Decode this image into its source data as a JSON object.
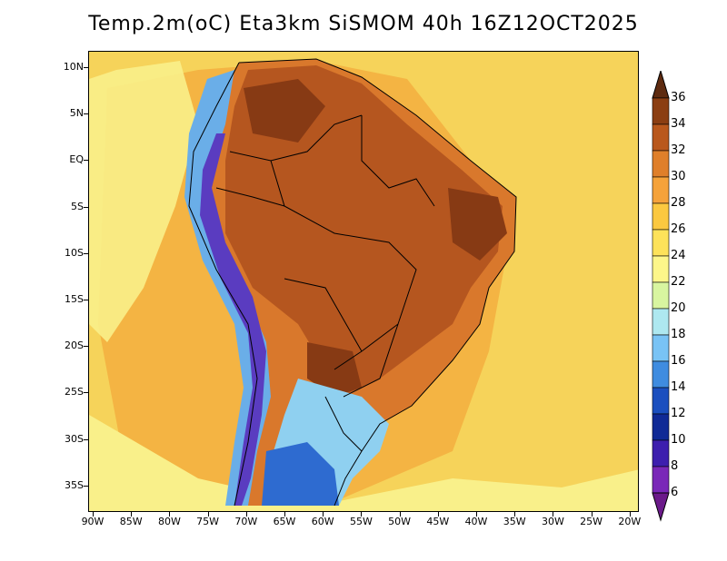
{
  "title": "Temp.2m(oC) Eta3km SiSMOM 40h 16Z12OCT2025",
  "lat_axis": [
    {
      "label": "10N",
      "value": 10
    },
    {
      "label": "5N",
      "value": 5
    },
    {
      "label": "EQ",
      "value": 0
    },
    {
      "label": "5S",
      "value": -5
    },
    {
      "label": "10S",
      "value": -10
    },
    {
      "label": "15S",
      "value": -15
    },
    {
      "label": "20S",
      "value": -20
    },
    {
      "label": "25S",
      "value": -25
    },
    {
      "label": "30S",
      "value": -30
    },
    {
      "label": "35S",
      "value": -35
    }
  ],
  "lon_axis": [
    {
      "label": "90W",
      "value": -90
    },
    {
      "label": "85W",
      "value": -85
    },
    {
      "label": "80W",
      "value": -80
    },
    {
      "label": "75W",
      "value": -75
    },
    {
      "label": "70W",
      "value": -70
    },
    {
      "label": "65W",
      "value": -65
    },
    {
      "label": "60W",
      "value": -60
    },
    {
      "label": "55W",
      "value": -55
    },
    {
      "label": "50W",
      "value": -50
    },
    {
      "label": "45W",
      "value": -45
    },
    {
      "label": "40W",
      "value": -40
    },
    {
      "label": "35W",
      "value": -35
    },
    {
      "label": "30W",
      "value": -30
    },
    {
      "label": "25W",
      "value": -25
    },
    {
      "label": "20W",
      "value": -20
    }
  ],
  "colorbar": {
    "levels": [
      "36",
      "34",
      "32",
      "30",
      "28",
      "26",
      "24",
      "22",
      "20",
      "18",
      "16",
      "14",
      "12",
      "10",
      "8",
      "6"
    ],
    "colors": [
      "#5e2b10",
      "#8b3e12",
      "#b9581c",
      "#df7f2a",
      "#f5a23a",
      "#fbc840",
      "#fde25a",
      "#fdf68a",
      "#d8f5a0",
      "#aee8f0",
      "#79c3f5",
      "#3f8ce0",
      "#1b4fbf",
      "#102a96",
      "#3d1fae",
      "#7a28b8",
      "#a850c8",
      "#6b1a8a"
    ]
  },
  "regions": {
    "ocean_far": "#f6d35a",
    "ocean_near": "#f4b443",
    "ocean_cool": "#f9f08a",
    "land_hot": "#b5561f",
    "land_warm": "#d9782c",
    "land_very_hot": "#873a14",
    "andes_cold": "#5a3cc0",
    "andes_cool": "#6aaee8",
    "south_cool": "#8fd0f0",
    "south_cold": "#2e6bd0"
  }
}
